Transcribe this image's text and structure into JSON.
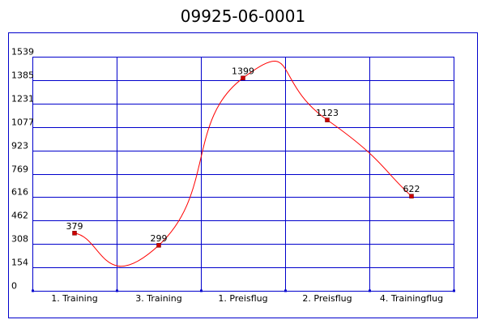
{
  "colors": {
    "frame": "#0000cc",
    "grid": "#0000cc",
    "line": "#ff0000",
    "marker": "#cc0000",
    "background": "#ffffff"
  },
  "chart_data": {
    "type": "line",
    "title": "09925-06-0001",
    "xlabel": "",
    "ylabel": "",
    "categories": [
      "1. Training",
      "3. Training",
      "1. Preisflug",
      "2. Preisflug",
      "4. Trainingflug"
    ],
    "series": [
      {
        "values": [
          379,
          299,
          1399,
          1123,
          622
        ]
      }
    ],
    "data_labels": [
      "379",
      "299",
      "1399",
      "1123",
      "622"
    ],
    "y_ticks": [
      0,
      154,
      308,
      462,
      616,
      769,
      923,
      1077,
      1231,
      1385,
      1539
    ],
    "y_tick_labels": [
      "0",
      "154",
      "308",
      "462",
      "616",
      "769",
      "923",
      "1077",
      "1231",
      "1385",
      "1539"
    ],
    "ylim": [
      0,
      1539
    ],
    "smooth": true,
    "grid": true,
    "legend": "none"
  }
}
